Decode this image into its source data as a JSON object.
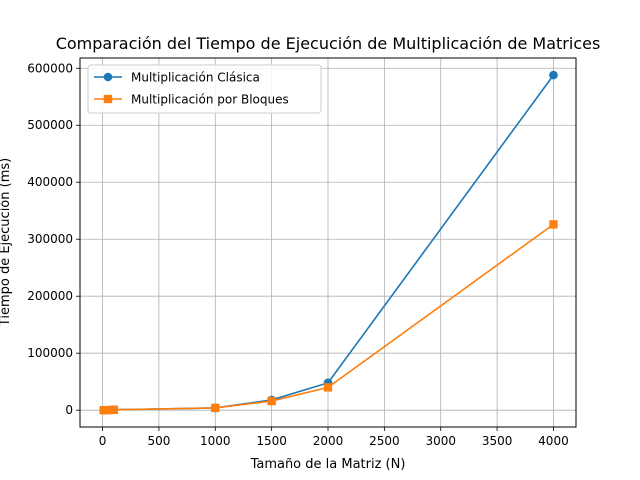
{
  "chart_data": {
    "type": "line",
    "title": "Comparación del Tiempo de Ejecución de Multiplicación de Matrices",
    "xlabel": "Tamaño de la Matriz (N)",
    "ylabel": "Tiempo de Ejecución (ms)",
    "xlim": [
      -200,
      4200
    ],
    "ylim": [
      -29500,
      618000
    ],
    "xticks": [
      0,
      500,
      1000,
      1500,
      2000,
      2500,
      3000,
      3500,
      4000
    ],
    "yticks": [
      0,
      100000,
      200000,
      300000,
      400000,
      500000,
      600000
    ],
    "xtick_labels": [
      "0",
      "500",
      "1000",
      "1500",
      "2000",
      "2500",
      "3000",
      "3500",
      "4000"
    ],
    "ytick_labels": [
      "0",
      "100000",
      "200000",
      "300000",
      "400000",
      "500000",
      "600000"
    ],
    "grid": true,
    "legend_position": "top-left",
    "series": [
      {
        "name": "Multiplicación Clásica",
        "color": "#1f77b4",
        "marker": "circle",
        "x": [
          10,
          50,
          100,
          1000,
          1500,
          2000,
          4000
        ],
        "y": [
          0,
          100,
          800,
          4000,
          18000,
          48000,
          588000
        ]
      },
      {
        "name": "Multiplicación por Bloques",
        "color": "#ff7f0e",
        "marker": "square",
        "x": [
          10,
          50,
          100,
          1000,
          1500,
          2000,
          4000
        ],
        "y": [
          0,
          100,
          700,
          4000,
          16000,
          40000,
          326000
        ]
      }
    ]
  }
}
